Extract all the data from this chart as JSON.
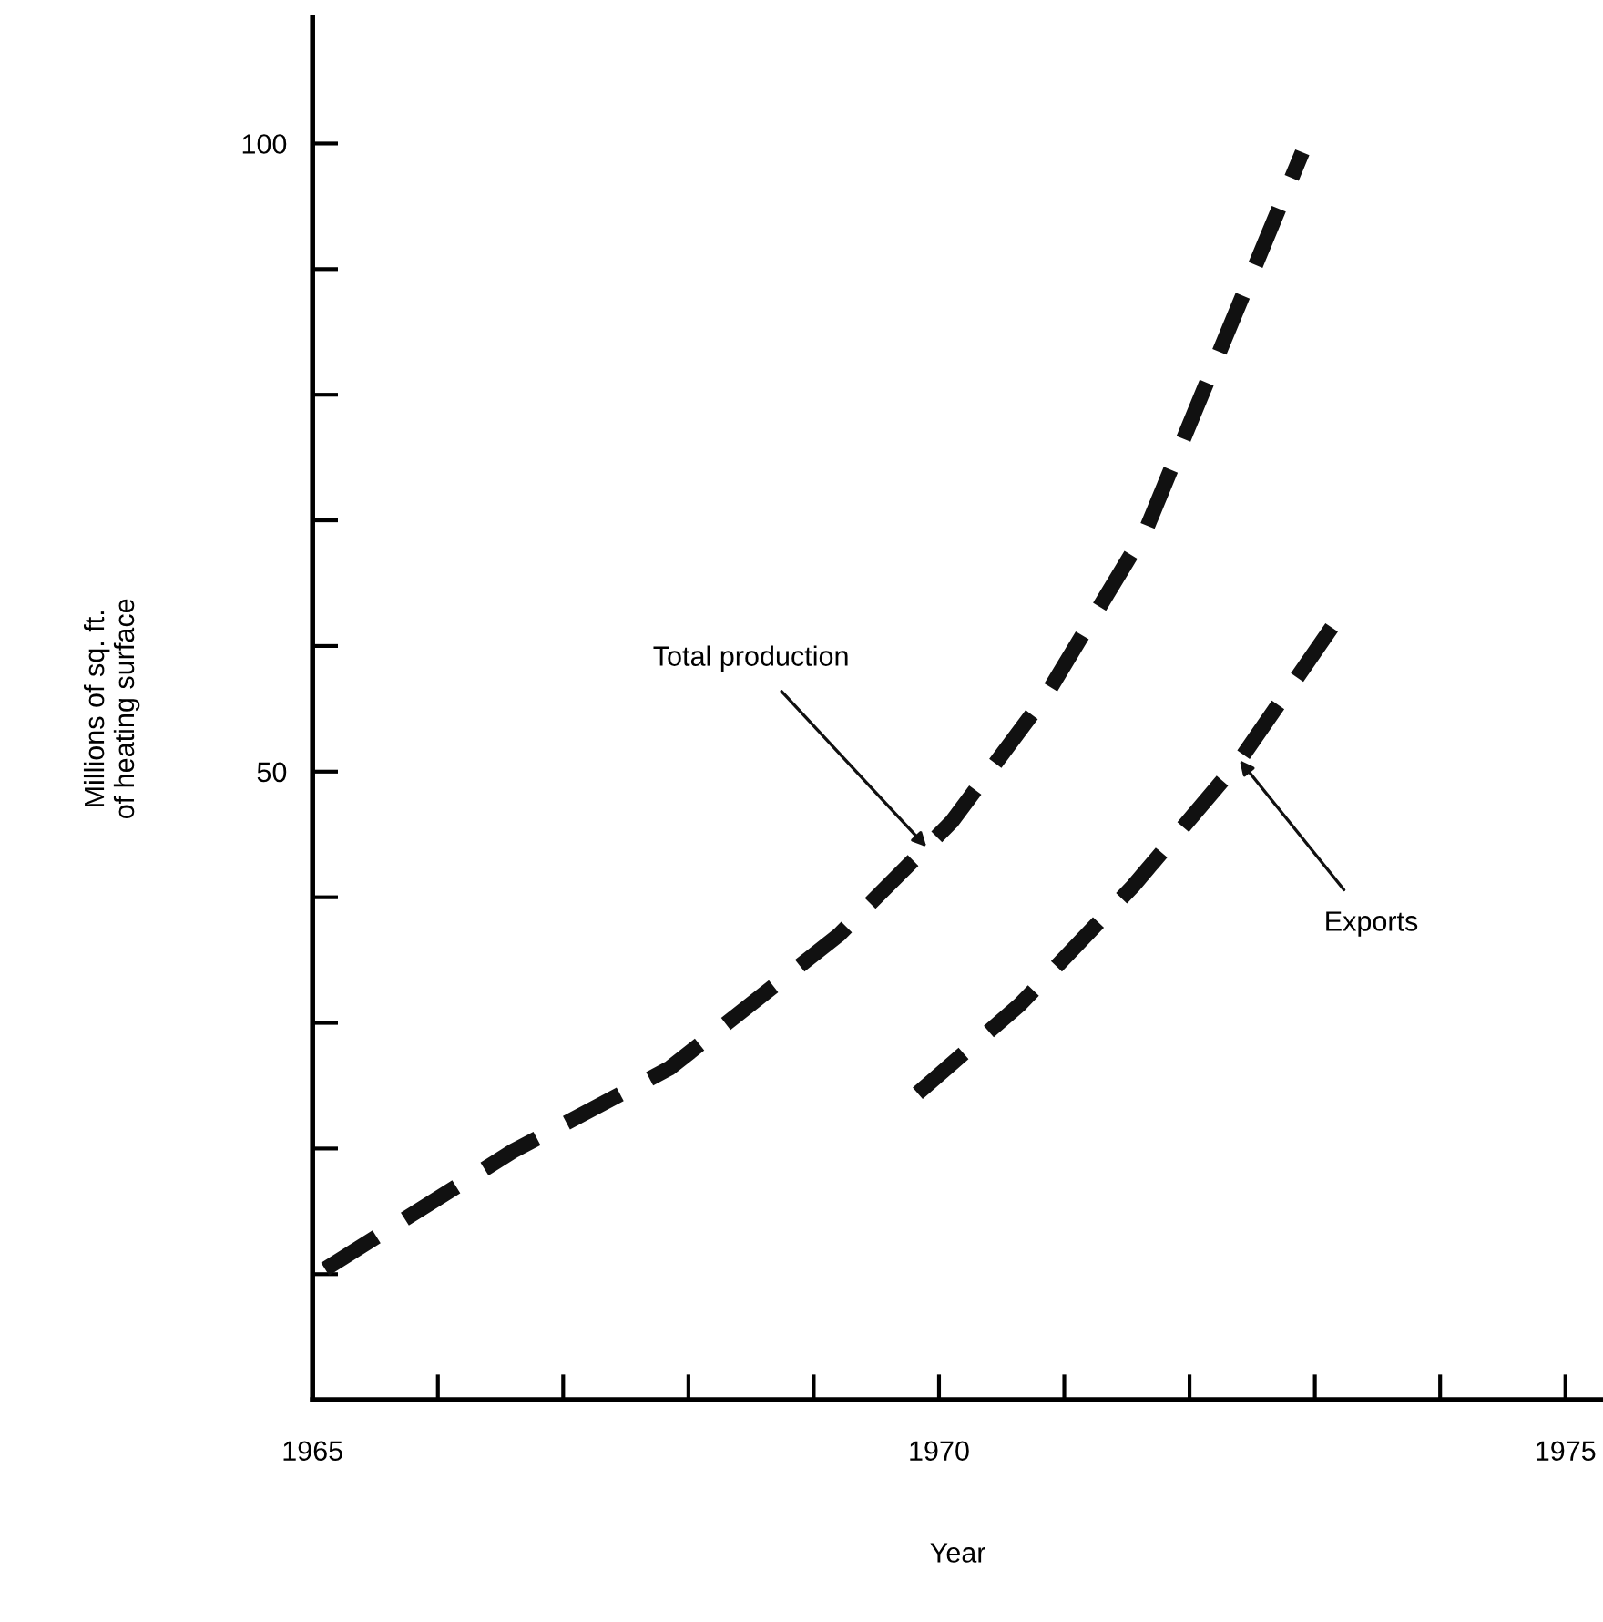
{
  "chart_data": {
    "type": "line",
    "xlabel": "Year",
    "ylabel": "Millions of sq. ft.\nof heating surface",
    "series": [
      {
        "color": "#111111",
        "x": [
          1965.1,
          1966.6,
          1967.85,
          1969.2,
          1970.1,
          1970.85,
          1971.65,
          1972.25,
          1972.9
        ],
        "values": [
          10.4,
          19.8,
          26.4,
          37,
          46,
          56,
          69.2,
          83.7,
          99.3
        ]
      },
      {
        "color": "#111111",
        "x": [
          1969.83,
          1970.65,
          1971.55,
          1972.4,
          1973.15
        ],
        "values": [
          24.4,
          31.5,
          40.9,
          50.9,
          61.7
        ]
      }
    ],
    "annotations": [
      {
        "text": "Total production",
        "x": 1969.9,
        "y": 44
      },
      {
        "text": "Exports",
        "x": 1972.4,
        "y": 50.9
      }
    ],
    "xlim": [
      1965,
      1975.3
    ],
    "ylim": [
      0,
      110
    ],
    "xticks": [
      1965,
      {
        "value": 1966,
        "label": null
      },
      {
        "value": 1967,
        "label": null
      },
      {
        "value": 1968,
        "label": null
      },
      {
        "value": 1969,
        "label": null
      },
      1970,
      {
        "value": 1971,
        "label": null
      },
      {
        "value": 1972,
        "label": null
      },
      {
        "value": 1973,
        "label": null
      },
      {
        "value": 1974,
        "label": null
      },
      1975
    ],
    "yticks": [
      {
        "value": 10,
        "label": null
      },
      {
        "value": 20,
        "label": null
      },
      {
        "value": 30,
        "label": null
      },
      {
        "value": 40,
        "label": null
      },
      50,
      {
        "value": 60,
        "label": null
      },
      {
        "value": 70,
        "label": null
      },
      {
        "value": 80,
        "label": null
      },
      {
        "value": 90,
        "label": null
      },
      100
    ],
    "grid": false,
    "marker": "none",
    "line_style": "dashed"
  }
}
